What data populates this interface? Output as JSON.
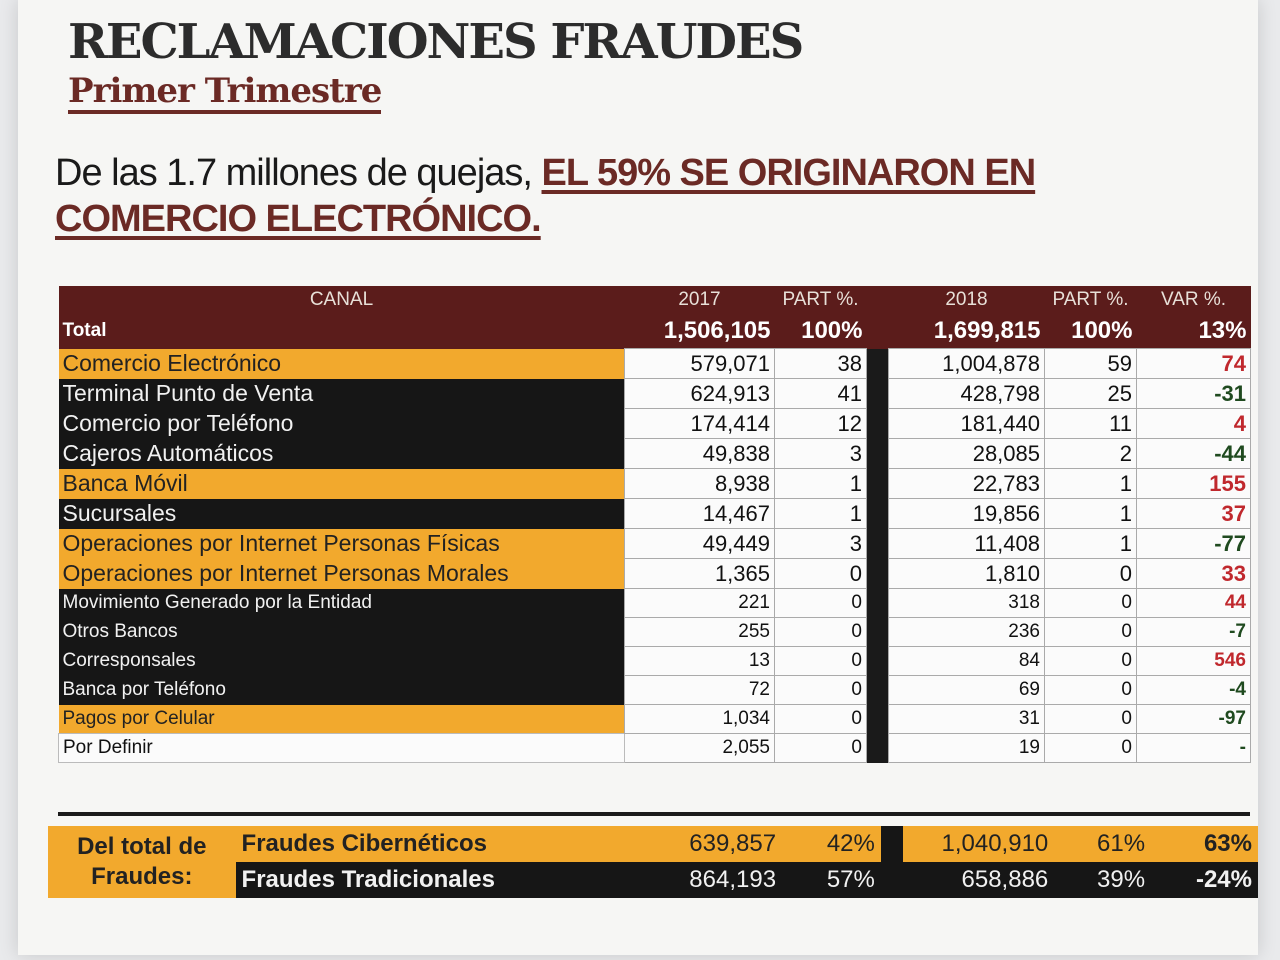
{
  "doc": {
    "title": "RECLAMACIONES FRAUDES",
    "subtitle": "Primer Trimestre",
    "headline_plain": "De las 1.7 millones de quejas, ",
    "headline_emph": "EL 59% SE ORIGINARON EN COMERCIO ELECTRÓNICO."
  },
  "table": {
    "headers": {
      "canal": "CANAL",
      "y2017": "2017",
      "part1": "PART %.",
      "y2018": "2018",
      "part2": "PART %.",
      "var": "VAR %."
    },
    "total": {
      "label": "Total",
      "v2017": "1,506,105",
      "p2017": "100%",
      "v2018": "1,699,815",
      "p2018": "100%",
      "var": "13%"
    },
    "rows": [
      {
        "name": "Comercio Electrónico",
        "v2017": "579,071",
        "p2017": "38",
        "v2018": "1,004,878",
        "p2018": "59",
        "var": "74"
      },
      {
        "name": "Terminal Punto de Venta",
        "v2017": "624,913",
        "p2017": "41",
        "v2018": "428,798",
        "p2018": "25",
        "var": "-31"
      },
      {
        "name": "Comercio por Teléfono",
        "v2017": "174,414",
        "p2017": "12",
        "v2018": "181,440",
        "p2018": "11",
        "var": "4"
      },
      {
        "name": "Cajeros Automáticos",
        "v2017": "49,838",
        "p2017": "3",
        "v2018": "28,085",
        "p2018": "2",
        "var": "-44"
      },
      {
        "name": "Banca Móvil",
        "v2017": "8,938",
        "p2017": "1",
        "v2018": "22,783",
        "p2018": "1",
        "var": "155"
      },
      {
        "name": "Sucursales",
        "v2017": "14,467",
        "p2017": "1",
        "v2018": "19,856",
        "p2018": "1",
        "var": "37"
      },
      {
        "name": "Operaciones por Internet Personas Físicas",
        "v2017": "49,449",
        "p2017": "3",
        "v2018": "11,408",
        "p2018": "1",
        "var": "-77"
      },
      {
        "name": "Operaciones por Internet Personas Morales",
        "v2017": "1,365",
        "p2017": "0",
        "v2018": "1,810",
        "p2018": "0",
        "var": "33"
      },
      {
        "name": "Movimiento Generado por la Entidad",
        "v2017": "221",
        "p2017": "0",
        "v2018": "318",
        "p2018": "0",
        "var": "44"
      },
      {
        "name": "Otros Bancos",
        "v2017": "255",
        "p2017": "0",
        "v2018": "236",
        "p2018": "0",
        "var": "-7"
      },
      {
        "name": "Corresponsales",
        "v2017": "13",
        "p2017": "0",
        "v2018": "84",
        "p2018": "0",
        "var": "546"
      },
      {
        "name": "Banca por Teléfono",
        "v2017": "72",
        "p2017": "0",
        "v2018": "69",
        "p2018": "0",
        "var": "-4"
      },
      {
        "name": "Pagos por Celular",
        "v2017": "1,034",
        "p2017": "0",
        "v2018": "31",
        "p2018": "0",
        "var": "-97"
      },
      {
        "name": "Por Definir",
        "v2017": "2,055",
        "p2017": "0",
        "v2018": "19",
        "p2018": "0",
        "var": "-"
      }
    ]
  },
  "summary": {
    "side_label_1": "Del total de",
    "side_label_2": "Fraudes:",
    "ciber": {
      "name": "Fraudes Cibernéticos",
      "v2017": "639,857",
      "p2017": "42%",
      "v2018": "1,040,910",
      "p2018": "61%",
      "var": "63%"
    },
    "trad": {
      "name": "Fraudes Tradicionales",
      "v2017": "864,193",
      "p2017": "57%",
      "v2018": "658,886",
      "p2018": "39%",
      "var": "-24%"
    }
  },
  "colors": {
    "maroon": "#5b1c1b",
    "gold": "#f2a92d",
    "dark": "#161616",
    "positive_var": "#c0282d",
    "negative_var": "#1f4a1f"
  }
}
